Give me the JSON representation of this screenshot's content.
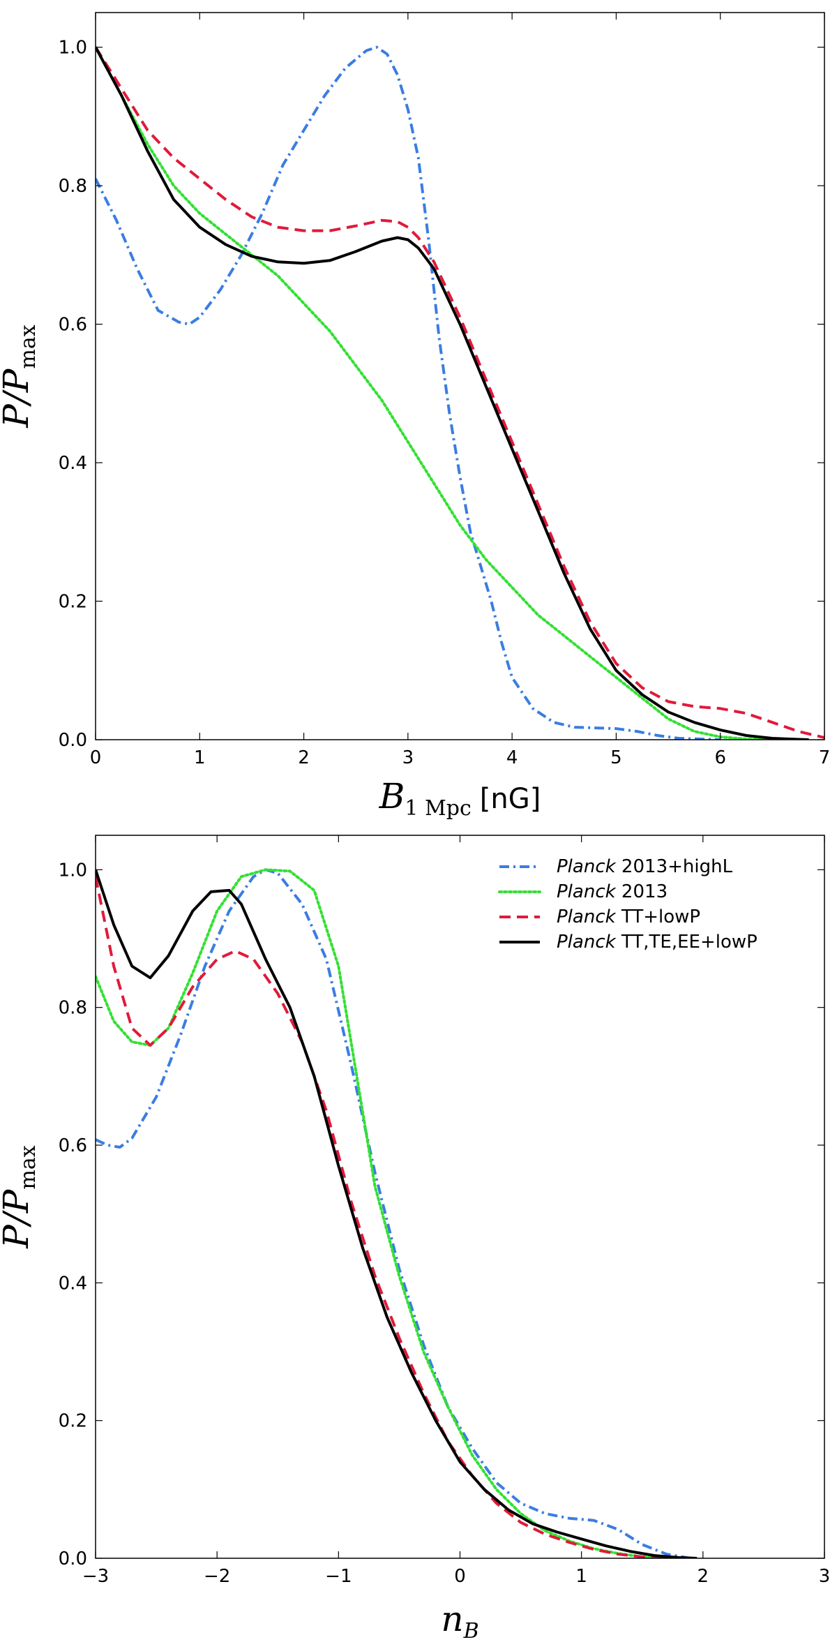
{
  "chart_data": [
    {
      "type": "line",
      "id": "top",
      "xlabel": {
        "main": "B",
        "sub": "1 Mpc",
        "unit": "[nG]"
      },
      "ylabel": {
        "main": "P/P",
        "sub": "max"
      },
      "xlim": [
        0,
        7
      ],
      "ylim": [
        0,
        1.05
      ],
      "xticks": [
        0,
        1,
        2,
        3,
        4,
        5,
        6,
        7
      ],
      "xtick_labels": [
        "0",
        "1",
        "2",
        "3",
        "4",
        "5",
        "6",
        "7"
      ],
      "yticks": [
        0,
        0.2,
        0.4,
        0.6,
        0.8,
        1.0
      ],
      "ytick_labels": [
        "0.0",
        "0.2",
        "0.4",
        "0.6",
        "0.8",
        "1.0"
      ],
      "series": [
        {
          "name": "Planck 2013+highL",
          "color": "#3a7de2",
          "style": "dashdot",
          "x": [
            0,
            0.2,
            0.4,
            0.6,
            0.8,
            0.9,
            1.0,
            1.2,
            1.4,
            1.6,
            1.8,
            2.0,
            2.2,
            2.4,
            2.6,
            2.7,
            2.8,
            2.9,
            3.0,
            3.1,
            3.2,
            3.3,
            3.4,
            3.5,
            3.6,
            3.7,
            3.8,
            3.9,
            4.0,
            4.2,
            4.4,
            4.6,
            4.8,
            5.0,
            5.2,
            5.4,
            5.6,
            5.8,
            6.0
          ],
          "y": [
            0.81,
            0.75,
            0.68,
            0.62,
            0.603,
            0.6,
            0.61,
            0.65,
            0.7,
            0.76,
            0.83,
            0.88,
            0.93,
            0.97,
            0.995,
            1.0,
            0.99,
            0.96,
            0.91,
            0.84,
            0.72,
            0.58,
            0.47,
            0.38,
            0.3,
            0.25,
            0.2,
            0.14,
            0.09,
            0.045,
            0.025,
            0.018,
            0.017,
            0.016,
            0.012,
            0.006,
            0.002,
            0.001,
            0
          ]
        },
        {
          "name": "Planck 2013",
          "color": "#33e033",
          "style": "dotted",
          "x": [
            0,
            0.25,
            0.5,
            0.75,
            1.0,
            1.25,
            1.5,
            1.75,
            2.0,
            2.25,
            2.5,
            2.75,
            3.0,
            3.25,
            3.5,
            3.75,
            4.0,
            4.25,
            4.5,
            4.75,
            5.0,
            5.25,
            5.5,
            5.75,
            6.0,
            6.25,
            6.5
          ],
          "y": [
            1.0,
            0.93,
            0.86,
            0.8,
            0.76,
            0.73,
            0.7,
            0.67,
            0.63,
            0.59,
            0.54,
            0.49,
            0.43,
            0.37,
            0.31,
            0.26,
            0.22,
            0.18,
            0.15,
            0.12,
            0.09,
            0.06,
            0.03,
            0.012,
            0.004,
            0.001,
            0
          ]
        },
        {
          "name": "Planck TT+lowP",
          "color": "#e01a3a",
          "style": "dashed",
          "x": [
            0,
            0.25,
            0.5,
            0.75,
            1.0,
            1.25,
            1.5,
            1.75,
            2.0,
            2.25,
            2.5,
            2.75,
            2.9,
            3.0,
            3.1,
            3.25,
            3.5,
            3.75,
            4.0,
            4.25,
            4.5,
            4.75,
            5.0,
            5.25,
            5.5,
            5.75,
            6.0,
            6.25,
            6.5,
            6.75,
            7.0
          ],
          "y": [
            1.0,
            0.94,
            0.88,
            0.84,
            0.81,
            0.78,
            0.755,
            0.74,
            0.735,
            0.735,
            0.742,
            0.75,
            0.748,
            0.74,
            0.725,
            0.69,
            0.61,
            0.52,
            0.43,
            0.34,
            0.25,
            0.17,
            0.11,
            0.075,
            0.055,
            0.048,
            0.045,
            0.038,
            0.025,
            0.012,
            0.003
          ]
        },
        {
          "name": "Planck TT,TE,EE+lowP",
          "color": "#000000",
          "style": "solid",
          "x": [
            0,
            0.25,
            0.5,
            0.75,
            1.0,
            1.25,
            1.5,
            1.75,
            2.0,
            2.25,
            2.5,
            2.75,
            2.9,
            3.0,
            3.1,
            3.25,
            3.5,
            3.75,
            4.0,
            4.25,
            4.5,
            4.75,
            5.0,
            5.25,
            5.5,
            5.75,
            6.0,
            6.25,
            6.5,
            6.75,
            6.85
          ],
          "y": [
            1.0,
            0.93,
            0.85,
            0.78,
            0.74,
            0.715,
            0.698,
            0.69,
            0.688,
            0.692,
            0.705,
            0.72,
            0.725,
            0.722,
            0.71,
            0.68,
            0.6,
            0.51,
            0.42,
            0.33,
            0.24,
            0.16,
            0.1,
            0.065,
            0.04,
            0.025,
            0.014,
            0.006,
            0.002,
            0.0005,
            0
          ]
        }
      ]
    },
    {
      "type": "line",
      "id": "bottom",
      "xlabel": {
        "main": "n",
        "sub": "B",
        "unit": ""
      },
      "ylabel": {
        "main": "P/P",
        "sub": "max"
      },
      "xlim": [
        -3,
        3
      ],
      "ylim": [
        0,
        1.05
      ],
      "xticks": [
        -3,
        -2,
        -1,
        0,
        1,
        2,
        3
      ],
      "xtick_labels": [
        "−3",
        "−2",
        "−1",
        "0",
        "1",
        "2",
        "3"
      ],
      "yticks": [
        0,
        0.2,
        0.4,
        0.6,
        0.8,
        1.0
      ],
      "ytick_labels": [
        "0.0",
        "0.2",
        "0.4",
        "0.6",
        "0.8",
        "1.0"
      ],
      "legend": {
        "position": "top-right",
        "entries": [
          {
            "italic": "Planck",
            "text": " 2013+highL"
          },
          {
            "italic": "Planck",
            "text": " 2013"
          },
          {
            "italic": "Planck",
            "text": " TT+lowP"
          },
          {
            "italic": "Planck",
            "text": " TT,TE,EE+lowP"
          }
        ]
      },
      "series": [
        {
          "name": "Planck 2013+highL",
          "color": "#3a7de2",
          "style": "dashdot",
          "x": [
            -3,
            -2.9,
            -2.8,
            -2.7,
            -2.5,
            -2.3,
            -2.1,
            -1.9,
            -1.7,
            -1.6,
            -1.5,
            -1.3,
            -1.1,
            -0.9,
            -0.7,
            -0.5,
            -0.3,
            -0.1,
            0.1,
            0.3,
            0.5,
            0.7,
            0.9,
            1.1,
            1.3,
            1.5,
            1.7,
            1.9
          ],
          "y": [
            0.608,
            0.6,
            0.597,
            0.61,
            0.67,
            0.76,
            0.86,
            0.94,
            0.99,
            1.0,
            0.995,
            0.95,
            0.87,
            0.72,
            0.56,
            0.42,
            0.31,
            0.22,
            0.16,
            0.11,
            0.08,
            0.065,
            0.058,
            0.055,
            0.042,
            0.02,
            0.006,
            0
          ]
        },
        {
          "name": "Planck 2013",
          "color": "#33e033",
          "style": "dotted",
          "x": [
            -3,
            -2.85,
            -2.7,
            -2.55,
            -2.4,
            -2.2,
            -2.0,
            -1.8,
            -1.6,
            -1.4,
            -1.2,
            -1.0,
            -0.85,
            -0.7,
            -0.5,
            -0.3,
            -0.1,
            0.1,
            0.3,
            0.5,
            0.7,
            0.9,
            1.1,
            1.3,
            1.5,
            1.7
          ],
          "y": [
            0.845,
            0.78,
            0.75,
            0.745,
            0.77,
            0.85,
            0.94,
            0.99,
            1.0,
            0.998,
            0.97,
            0.86,
            0.7,
            0.54,
            0.41,
            0.3,
            0.22,
            0.15,
            0.1,
            0.065,
            0.04,
            0.025,
            0.014,
            0.007,
            0.002,
            0
          ]
        },
        {
          "name": "Planck TT+lowP",
          "color": "#e01a3a",
          "style": "dashed",
          "x": [
            -3,
            -2.85,
            -2.7,
            -2.55,
            -2.4,
            -2.2,
            -2.0,
            -1.85,
            -1.7,
            -1.5,
            -1.3,
            -1.1,
            -0.9,
            -0.7,
            -0.5,
            -0.3,
            -0.1,
            0.1,
            0.3,
            0.5,
            0.7,
            0.9,
            1.1,
            1.3,
            1.5,
            1.7
          ],
          "y": [
            0.99,
            0.86,
            0.77,
            0.745,
            0.77,
            0.83,
            0.87,
            0.882,
            0.87,
            0.82,
            0.75,
            0.65,
            0.52,
            0.41,
            0.32,
            0.24,
            0.17,
            0.12,
            0.08,
            0.052,
            0.035,
            0.023,
            0.013,
            0.006,
            0.002,
            0
          ]
        },
        {
          "name": "Planck TT,TE,EE+lowP",
          "color": "#000000",
          "style": "solid",
          "x": [
            -3,
            -2.85,
            -2.7,
            -2.55,
            -2.4,
            -2.2,
            -2.05,
            -1.9,
            -1.8,
            -1.6,
            -1.4,
            -1.2,
            -1.0,
            -0.8,
            -0.6,
            -0.4,
            -0.2,
            0,
            0.2,
            0.4,
            0.6,
            0.8,
            1.0,
            1.2,
            1.4,
            1.6,
            1.8,
            1.95
          ],
          "y": [
            1.0,
            0.92,
            0.86,
            0.843,
            0.875,
            0.94,
            0.968,
            0.97,
            0.95,
            0.87,
            0.8,
            0.7,
            0.57,
            0.45,
            0.35,
            0.27,
            0.2,
            0.14,
            0.1,
            0.07,
            0.05,
            0.038,
            0.028,
            0.018,
            0.01,
            0.004,
            0.001,
            0
          ]
        }
      ]
    }
  ]
}
